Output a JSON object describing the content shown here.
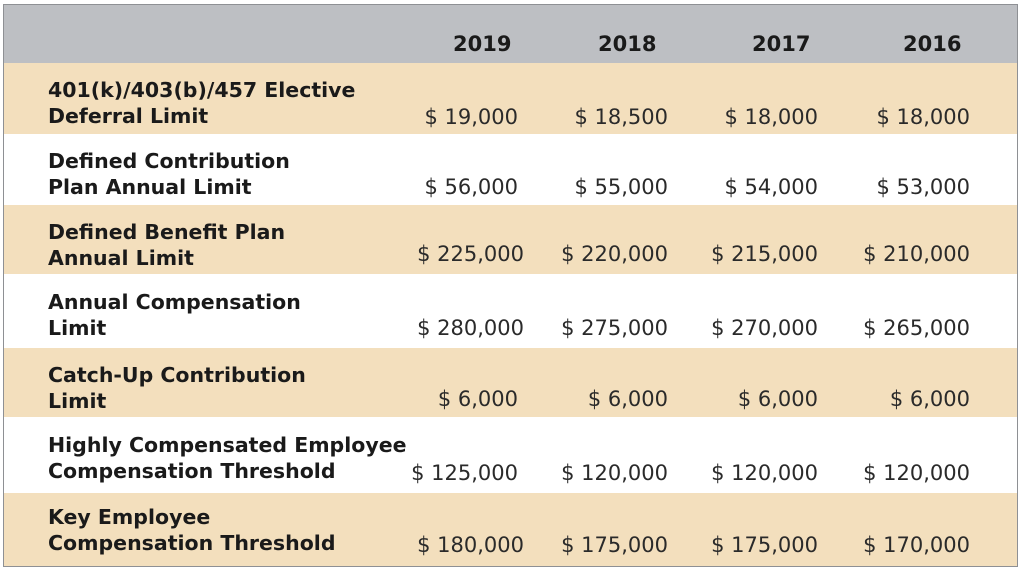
{
  "table": {
    "years": [
      "2019",
      "2018",
      "2017",
      "2016"
    ],
    "rows": [
      {
        "label_line1": "401(k)/403(b)/457 Elective",
        "label_line2": "Deferral Limit",
        "values": [
          "$ 19,000",
          "$ 18,500",
          "$ 18,000",
          "$ 18,000"
        ]
      },
      {
        "label_line1": "Defined Contribution",
        "label_line2": "Plan Annual Limit",
        "values": [
          "$ 56,000",
          "$ 55,000",
          "$ 54,000",
          "$ 53,000"
        ]
      },
      {
        "label_line1": "Defined Benefit Plan",
        "label_line2": "Annual Limit",
        "values": [
          "$ 225,000",
          "$ 220,000",
          "$ 215,000",
          "$ 210,000"
        ]
      },
      {
        "label_line1": "Annual Compensation",
        "label_line2": "Limit",
        "values": [
          "$ 280,000",
          "$ 275,000",
          "$ 270,000",
          "$ 265,000"
        ]
      },
      {
        "label_line1": "Catch-Up Contribution",
        "label_line2": "Limit",
        "values": [
          "$ 6,000",
          "$ 6,000",
          "$ 6,000",
          "$ 6,000"
        ]
      },
      {
        "label_line1": "Highly Compensated Employee",
        "label_line2": "Compensation Threshold",
        "values": [
          "$ 125,000",
          "$ 120,000",
          "$ 120,000",
          "$ 120,000"
        ]
      },
      {
        "label_line1": "Key Employee",
        "label_line2": "Compensation Threshold",
        "values": [
          "$ 180,000",
          "$ 175,000",
          "$ 175,000",
          "$ 170,000"
        ]
      }
    ]
  },
  "colors": {
    "header_bg": "#bdbfc3",
    "shaded_row_bg": "#f3dfbd",
    "plain_row_bg": "#ffffff",
    "border": "#8e9094"
  }
}
